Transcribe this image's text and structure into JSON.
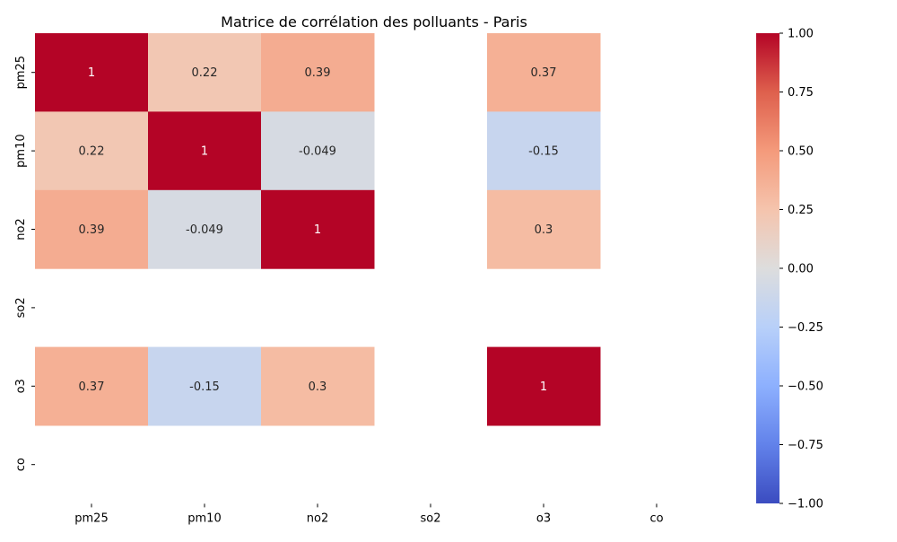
{
  "chart_data": {
    "type": "heatmap",
    "title": "Matrice de corrélation des polluants - Paris",
    "xlabel": "",
    "ylabel": "",
    "x_categories": [
      "pm25",
      "pm10",
      "no2",
      "so2",
      "o3",
      "co"
    ],
    "y_categories": [
      "pm25",
      "pm10",
      "no2",
      "so2",
      "o3",
      "co"
    ],
    "matrix": [
      [
        1,
        0.22,
        0.39,
        null,
        0.37,
        null
      ],
      [
        0.22,
        1,
        -0.049,
        null,
        -0.15,
        null
      ],
      [
        0.39,
        -0.049,
        1,
        null,
        0.3,
        null
      ],
      [
        null,
        null,
        null,
        null,
        null,
        null
      ],
      [
        0.37,
        -0.15,
        0.3,
        null,
        1,
        null
      ],
      [
        null,
        null,
        null,
        null,
        null,
        null
      ]
    ],
    "annotations": [
      [
        "1",
        "0.22",
        "0.39",
        "",
        "0.37",
        ""
      ],
      [
        "0.22",
        "1",
        "-0.049",
        "",
        "-0.15",
        ""
      ],
      [
        "0.39",
        "-0.049",
        "1",
        "",
        "0.3",
        ""
      ],
      [
        "",
        "",
        "",
        "",
        "",
        ""
      ],
      [
        "0.37",
        "-0.15",
        "0.3",
        "",
        "1",
        ""
      ],
      [
        "",
        "",
        "",
        "",
        "",
        ""
      ]
    ],
    "colormap": "coolwarm",
    "vmin": -1,
    "vmax": 1,
    "colorbar_ticks": [
      "1.00",
      "0.75",
      "0.50",
      "0.25",
      "0.00",
      "−0.25",
      "−0.50",
      "−0.75",
      "−1.00"
    ],
    "colorbar_tick_values": [
      1,
      0.75,
      0.5,
      0.25,
      0,
      -0.25,
      -0.5,
      -0.75,
      -1
    ],
    "grid": false,
    "colors": {
      "cmap_low": "#3b4cc0",
      "cmap_mid": "#dddddd",
      "cmap_high": "#b40426"
    }
  }
}
